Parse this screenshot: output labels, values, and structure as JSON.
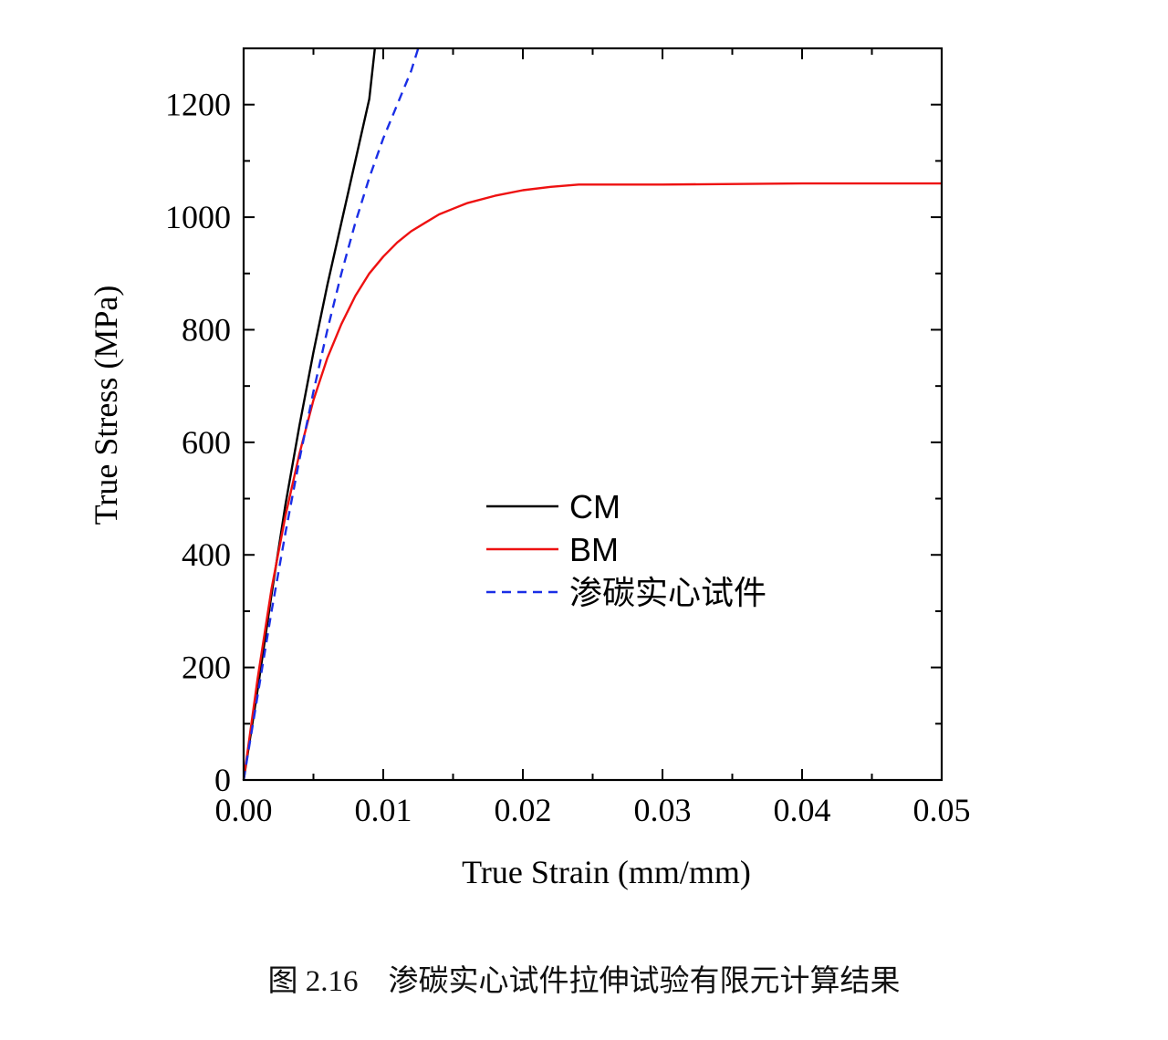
{
  "chart_data": {
    "type": "line",
    "xlabel": "True Strain (mm/mm)",
    "ylabel": "True Stress (MPa)",
    "xlim": [
      0,
      0.05
    ],
    "ylim": [
      0,
      1300
    ],
    "x_ticks": [
      0.0,
      0.01,
      0.02,
      0.03,
      0.04,
      0.05
    ],
    "x_tick_labels": [
      "0.00",
      "0.01",
      "0.02",
      "0.03",
      "0.04",
      "0.05"
    ],
    "y_ticks": [
      0,
      200,
      400,
      600,
      800,
      1000,
      1200
    ],
    "y_tick_labels": [
      "0",
      "200",
      "400",
      "600",
      "800",
      "1000",
      "1200"
    ],
    "grid": false,
    "legend_position": "center",
    "series": [
      {
        "name": "CM",
        "color": "#000000",
        "dash": "solid",
        "points": [
          [
            0,
            0
          ],
          [
            0.001,
            160
          ],
          [
            0.002,
            330
          ],
          [
            0.003,
            490
          ],
          [
            0.004,
            630
          ],
          [
            0.005,
            760
          ],
          [
            0.006,
            880
          ],
          [
            0.007,
            990
          ],
          [
            0.008,
            1100
          ],
          [
            0.009,
            1210
          ],
          [
            0.0094,
            1300
          ]
        ]
      },
      {
        "name": "BM",
        "color": "#ee1111",
        "dash": "solid",
        "points": [
          [
            0,
            0
          ],
          [
            0.001,
            180
          ],
          [
            0.002,
            340
          ],
          [
            0.003,
            470
          ],
          [
            0.004,
            580
          ],
          [
            0.005,
            675
          ],
          [
            0.006,
            750
          ],
          [
            0.007,
            810
          ],
          [
            0.008,
            860
          ],
          [
            0.009,
            900
          ],
          [
            0.01,
            930
          ],
          [
            0.011,
            955
          ],
          [
            0.012,
            975
          ],
          [
            0.013,
            990
          ],
          [
            0.014,
            1005
          ],
          [
            0.015,
            1015
          ],
          [
            0.016,
            1025
          ],
          [
            0.018,
            1038
          ],
          [
            0.02,
            1048
          ],
          [
            0.022,
            1054
          ],
          [
            0.024,
            1058
          ],
          [
            0.03,
            1058
          ],
          [
            0.04,
            1060
          ],
          [
            0.05,
            1060
          ]
        ]
      },
      {
        "name": "渗碳实心试件",
        "color": "#1a2ee6",
        "dash": "dashed",
        "points": [
          [
            0,
            0
          ],
          [
            0.001,
            150
          ],
          [
            0.002,
            300
          ],
          [
            0.003,
            440
          ],
          [
            0.004,
            570
          ],
          [
            0.005,
            690
          ],
          [
            0.006,
            800
          ],
          [
            0.007,
            900
          ],
          [
            0.008,
            990
          ],
          [
            0.009,
            1070
          ],
          [
            0.01,
            1140
          ],
          [
            0.011,
            1200
          ],
          [
            0.012,
            1260
          ],
          [
            0.0125,
            1300
          ]
        ]
      }
    ]
  },
  "caption": "图 2.16    渗碳实心试件拉伸试验有限元计算结果"
}
